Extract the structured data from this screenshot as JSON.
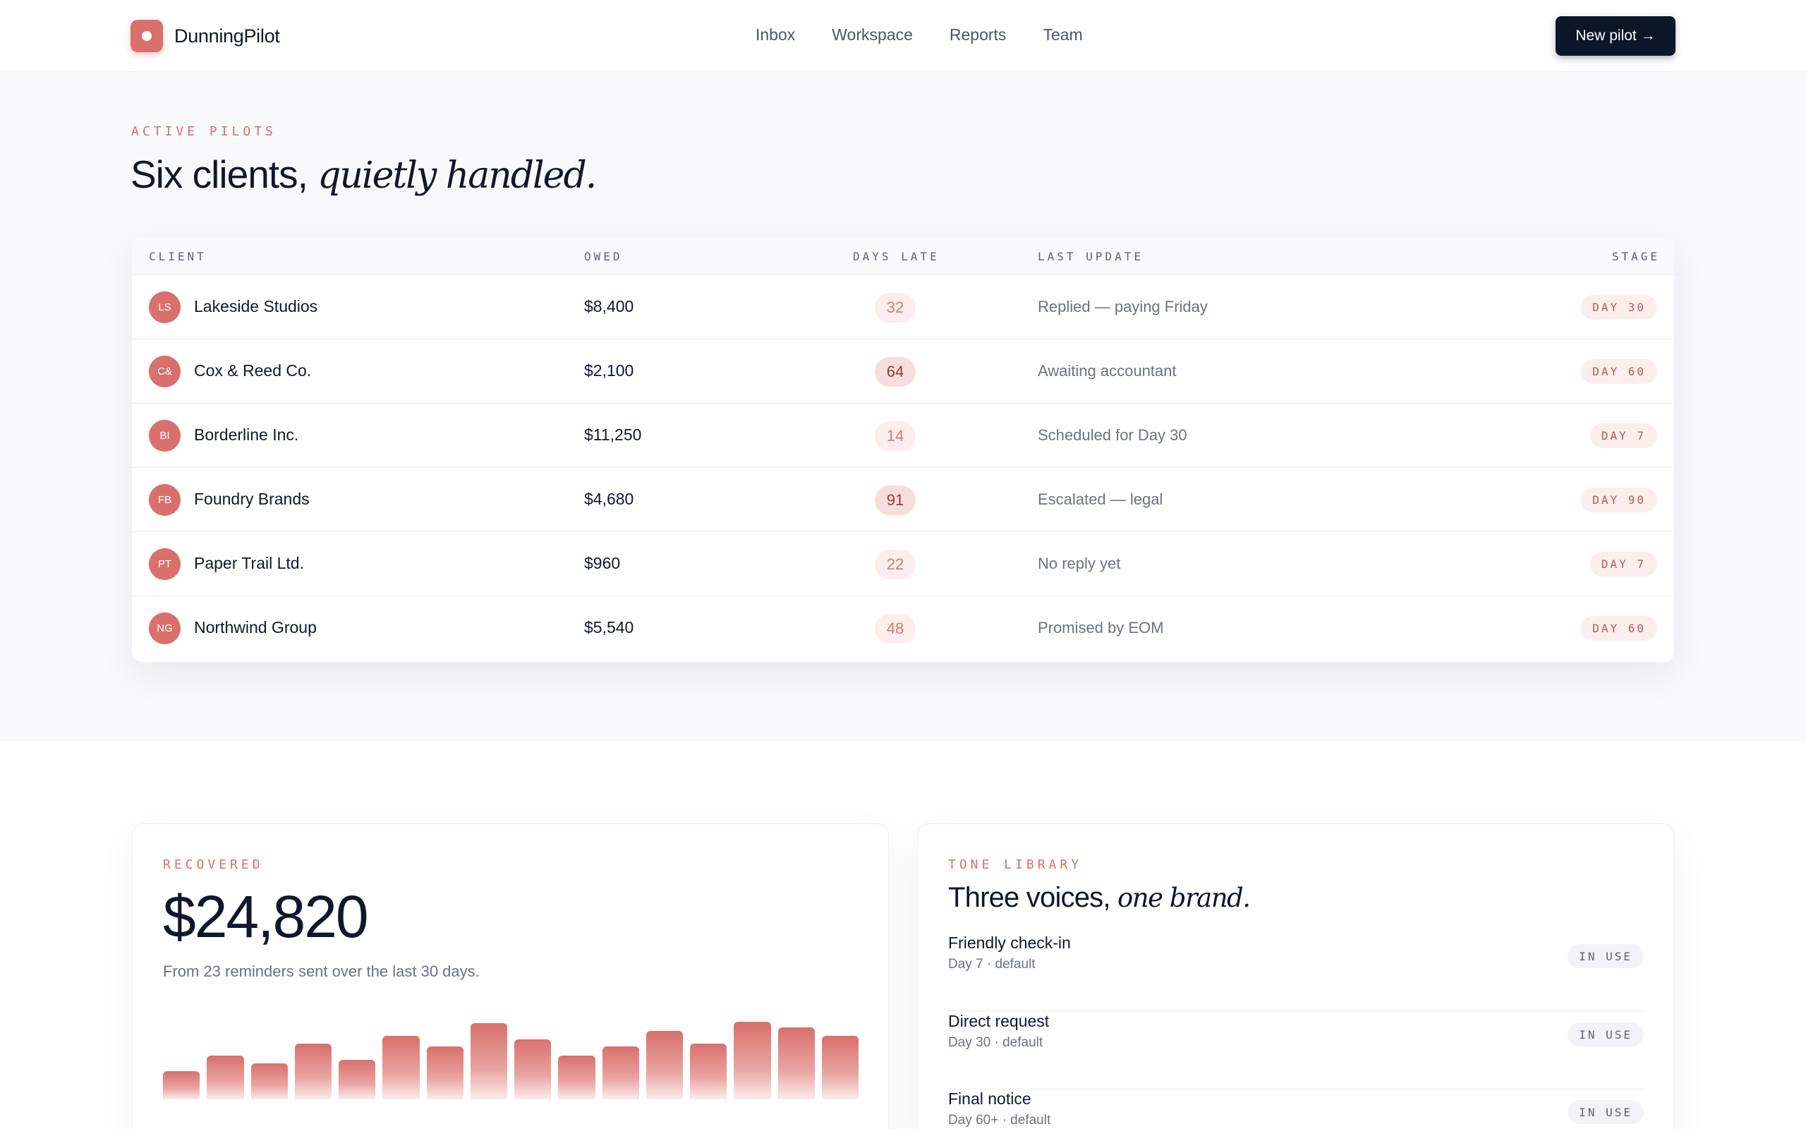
{
  "header": {
    "brand": "DunningPilot",
    "nav": [
      "Inbox",
      "Workspace",
      "Reports",
      "Team"
    ],
    "cta": "New pilot →"
  },
  "pilots": {
    "eyebrow": "ACTIVE PILOTS",
    "headline_plain": "Six clients, ",
    "headline_italic": "quietly handled.",
    "columns": {
      "client": "CLIENT",
      "owed": "OWED",
      "days_late": "DAYS LATE",
      "last_update": "LAST UPDATE",
      "stage": "STAGE"
    },
    "rows": [
      {
        "initials": "LS",
        "client": "Lakeside Studios",
        "owed": "$8,400",
        "days_late": "32",
        "update": "Replied — paying Friday",
        "stage": "DAY 30"
      },
      {
        "initials": "C&",
        "client": "Cox & Reed Co.",
        "owed": "$2,100",
        "days_late": "64",
        "update": "Awaiting accountant",
        "stage": "DAY 60"
      },
      {
        "initials": "BI",
        "client": "Borderline Inc.",
        "owed": "$11,250",
        "days_late": "14",
        "update": "Scheduled for Day 30",
        "stage": "DAY 7"
      },
      {
        "initials": "FB",
        "client": "Foundry Brands",
        "owed": "$4,680",
        "days_late": "91",
        "update": "Escalated — legal",
        "stage": "DAY 90"
      },
      {
        "initials": "PT",
        "client": "Paper Trail Ltd.",
        "owed": "$960",
        "days_late": "22",
        "update": "No reply yet",
        "stage": "DAY 7"
      },
      {
        "initials": "NG",
        "client": "Northwind Group",
        "owed": "$5,540",
        "days_late": "48",
        "update": "Promised by EOM",
        "stage": "DAY 60"
      }
    ]
  },
  "recovered": {
    "eyebrow": "RECOVERED",
    "amount": "$24,820",
    "subtitle": "From 23 reminders sent over the last 30 days.",
    "bar_levels": [
      0.36,
      0.56,
      0.46,
      0.72,
      0.51,
      0.82,
      0.68,
      0.98,
      0.77,
      0.56,
      0.68,
      0.88,
      0.72,
      1.0,
      0.93,
      0.82
    ]
  },
  "tone_library": {
    "eyebrow": "TONE LIBRARY",
    "title_plain": "Three voices, ",
    "title_italic": "one brand.",
    "items": [
      {
        "name": "Friendly check-in",
        "meta": "Day 7 · default",
        "status": "IN USE"
      },
      {
        "name": "Direct request",
        "meta": "Day 30 · default",
        "status": "IN USE"
      },
      {
        "name": "Final notice",
        "meta": "Day 60+ · default",
        "status": "IN USE"
      }
    ]
  },
  "colors": {
    "accent": "#d9706c",
    "ink": "#0f172a",
    "button": "#0b1628"
  }
}
